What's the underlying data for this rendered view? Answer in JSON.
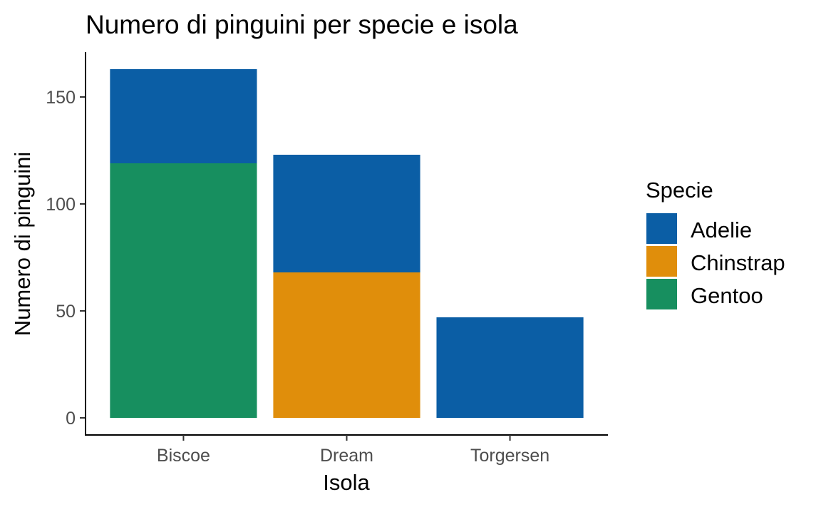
{
  "chart_data": {
    "type": "bar",
    "stacked": true,
    "title": "Numero di pinguini per specie e isola",
    "xlabel": "Isola",
    "ylabel": "Numero di pinguini",
    "categories": [
      "Biscoe",
      "Dream",
      "Torgersen"
    ],
    "series": [
      {
        "name": "Adelie",
        "color": "#0b5ea5",
        "values": [
          44,
          55,
          47
        ]
      },
      {
        "name": "Chinstrap",
        "color": "#e08e0b",
        "values": [
          0,
          68,
          0
        ]
      },
      {
        "name": "Gentoo",
        "color": "#178f5f",
        "values": [
          119,
          0,
          0
        ]
      }
    ],
    "ylim": [
      -8,
      171
    ],
    "yticks": [
      0,
      50,
      100,
      150
    ],
    "legend": {
      "title": "Specie",
      "position": "right"
    },
    "grid": false
  }
}
